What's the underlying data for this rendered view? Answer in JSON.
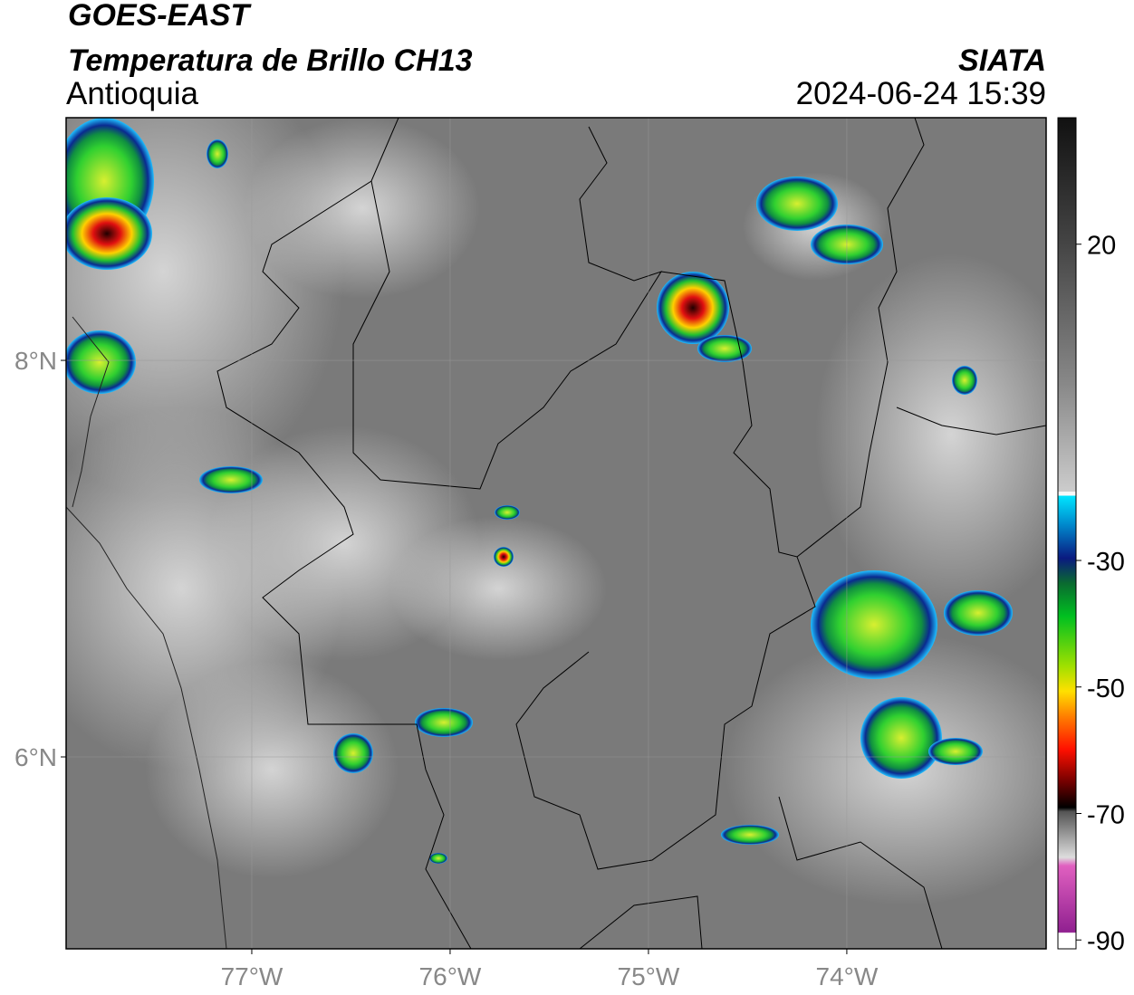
{
  "header": {
    "title": "GOES-EAST",
    "subtitle": "Temperatura de Brillo CH13",
    "region": "Antioquia",
    "source": "SIATA",
    "datetime": "2024-06-24 15:39"
  },
  "map": {
    "xlim": [
      -77.936,
      -72.995
    ],
    "ylim": [
      5.032,
      9.224
    ],
    "xticks": [
      {
        "value": -77,
        "label": "77°W"
      },
      {
        "value": -76,
        "label": "76°W"
      },
      {
        "value": -75,
        "label": "75°W"
      },
      {
        "value": -74,
        "label": "74°W"
      }
    ],
    "yticks": [
      {
        "value": 8,
        "label": "8°N"
      },
      {
        "value": 6,
        "label": "6°N"
      }
    ]
  },
  "colorbar": {
    "range": [
      -91.4,
      40
    ],
    "ticks": [
      20,
      -30,
      -50,
      -70,
      -90
    ]
  }
}
